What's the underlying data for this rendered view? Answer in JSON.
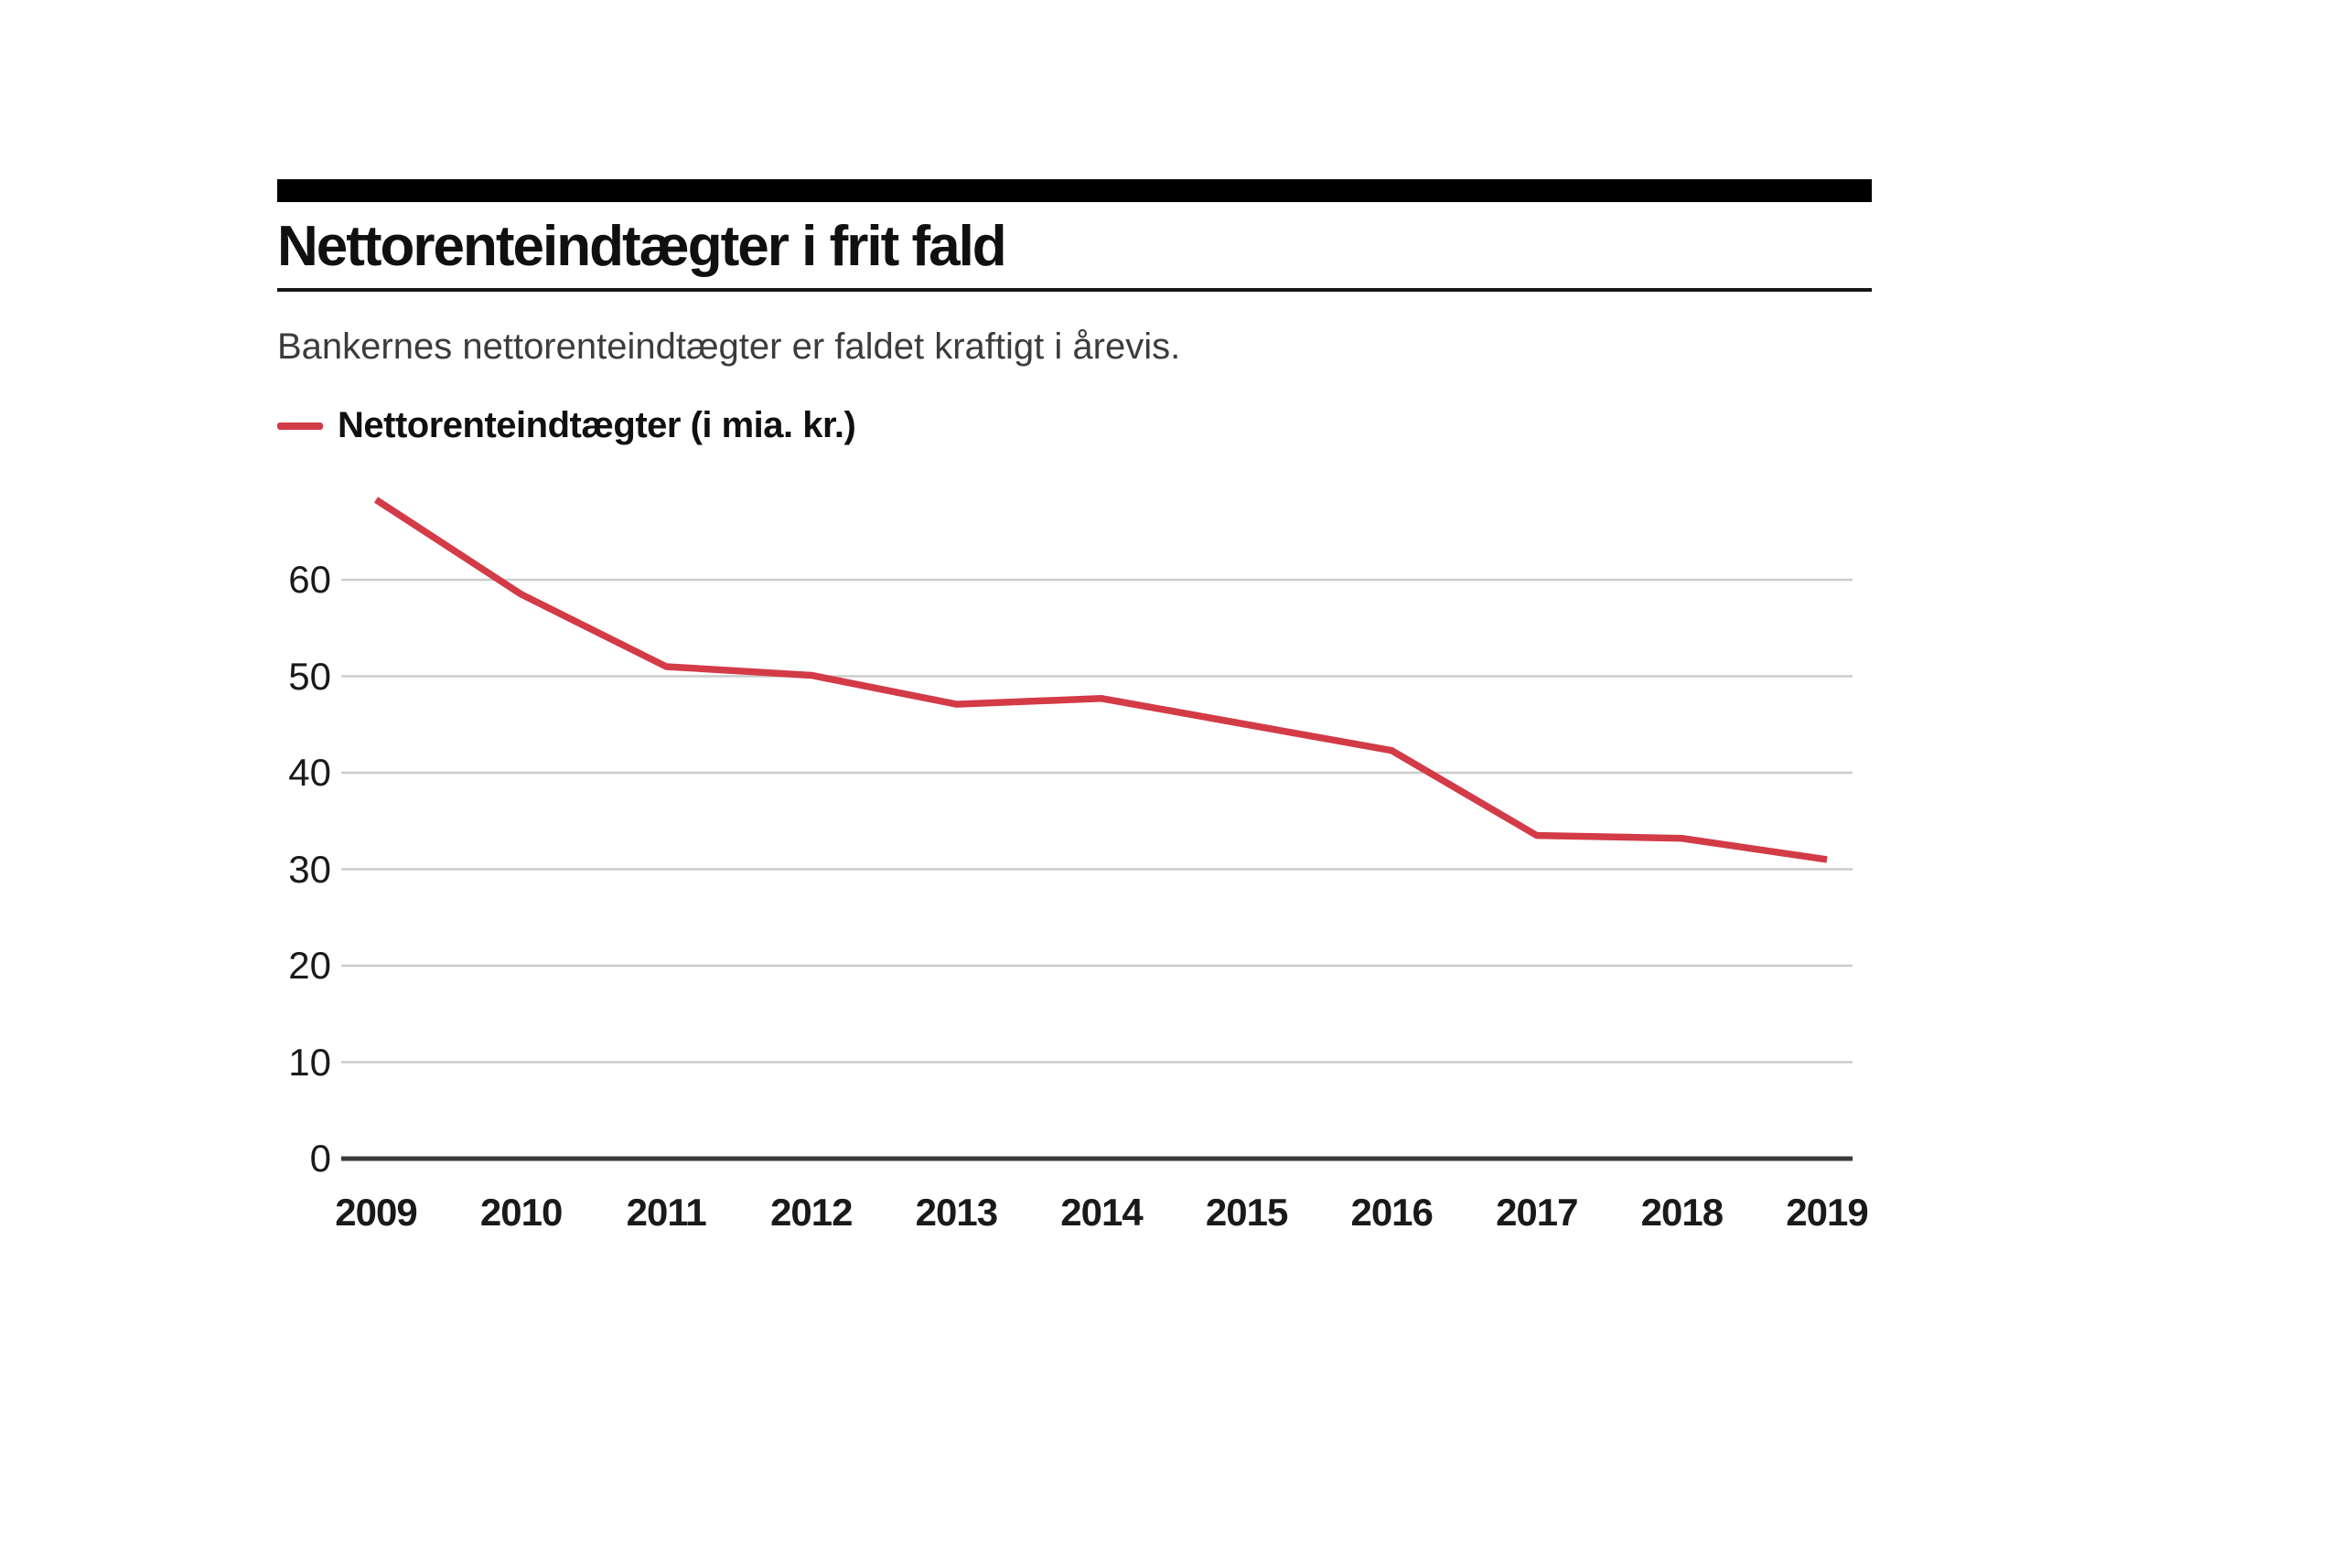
{
  "header": {
    "title": "Nettorenteindtægter i frit fald",
    "subtitle": "Bankernes nettorenteindtægter er faldet kraftigt i årevis."
  },
  "legend": {
    "label": "Nettorenteindtægter (i mia. kr.)"
  },
  "colors": {
    "background": "#ffffff",
    "top_bar": "#000000",
    "title_text": "#101010",
    "title_rule": "#161616",
    "subtitle_text": "#3c3c3c",
    "grid_line": "#cccccc",
    "axis_line": "#3a3a3a",
    "tick_text": "#1a1a1a",
    "accent_line": "#d33b47"
  },
  "chart_data": {
    "type": "line",
    "title": "Nettorenteindtægter i frit fald",
    "subtitle": "Bankernes nettorenteindtægter er faldet kraftigt i årevis.",
    "xlabel": "",
    "ylabel": "",
    "x": [
      2009,
      2010,
      2011,
      2012,
      2013,
      2014,
      2015,
      2016,
      2017,
      2018,
      2019
    ],
    "series": [
      {
        "name": "Nettorenteindtægter (i mia. kr.)",
        "color": "#d33b47",
        "values": [
          68.3,
          58.5,
          51.0,
          50.1,
          47.1,
          47.7,
          45.0,
          42.3,
          33.5,
          33.2,
          31.0
        ]
      }
    ],
    "ylim": [
      0,
      70
    ],
    "yticks": [
      0,
      10,
      20,
      30,
      40,
      50,
      60
    ],
    "grid": "horizontal",
    "legend_position": "top-left"
  }
}
